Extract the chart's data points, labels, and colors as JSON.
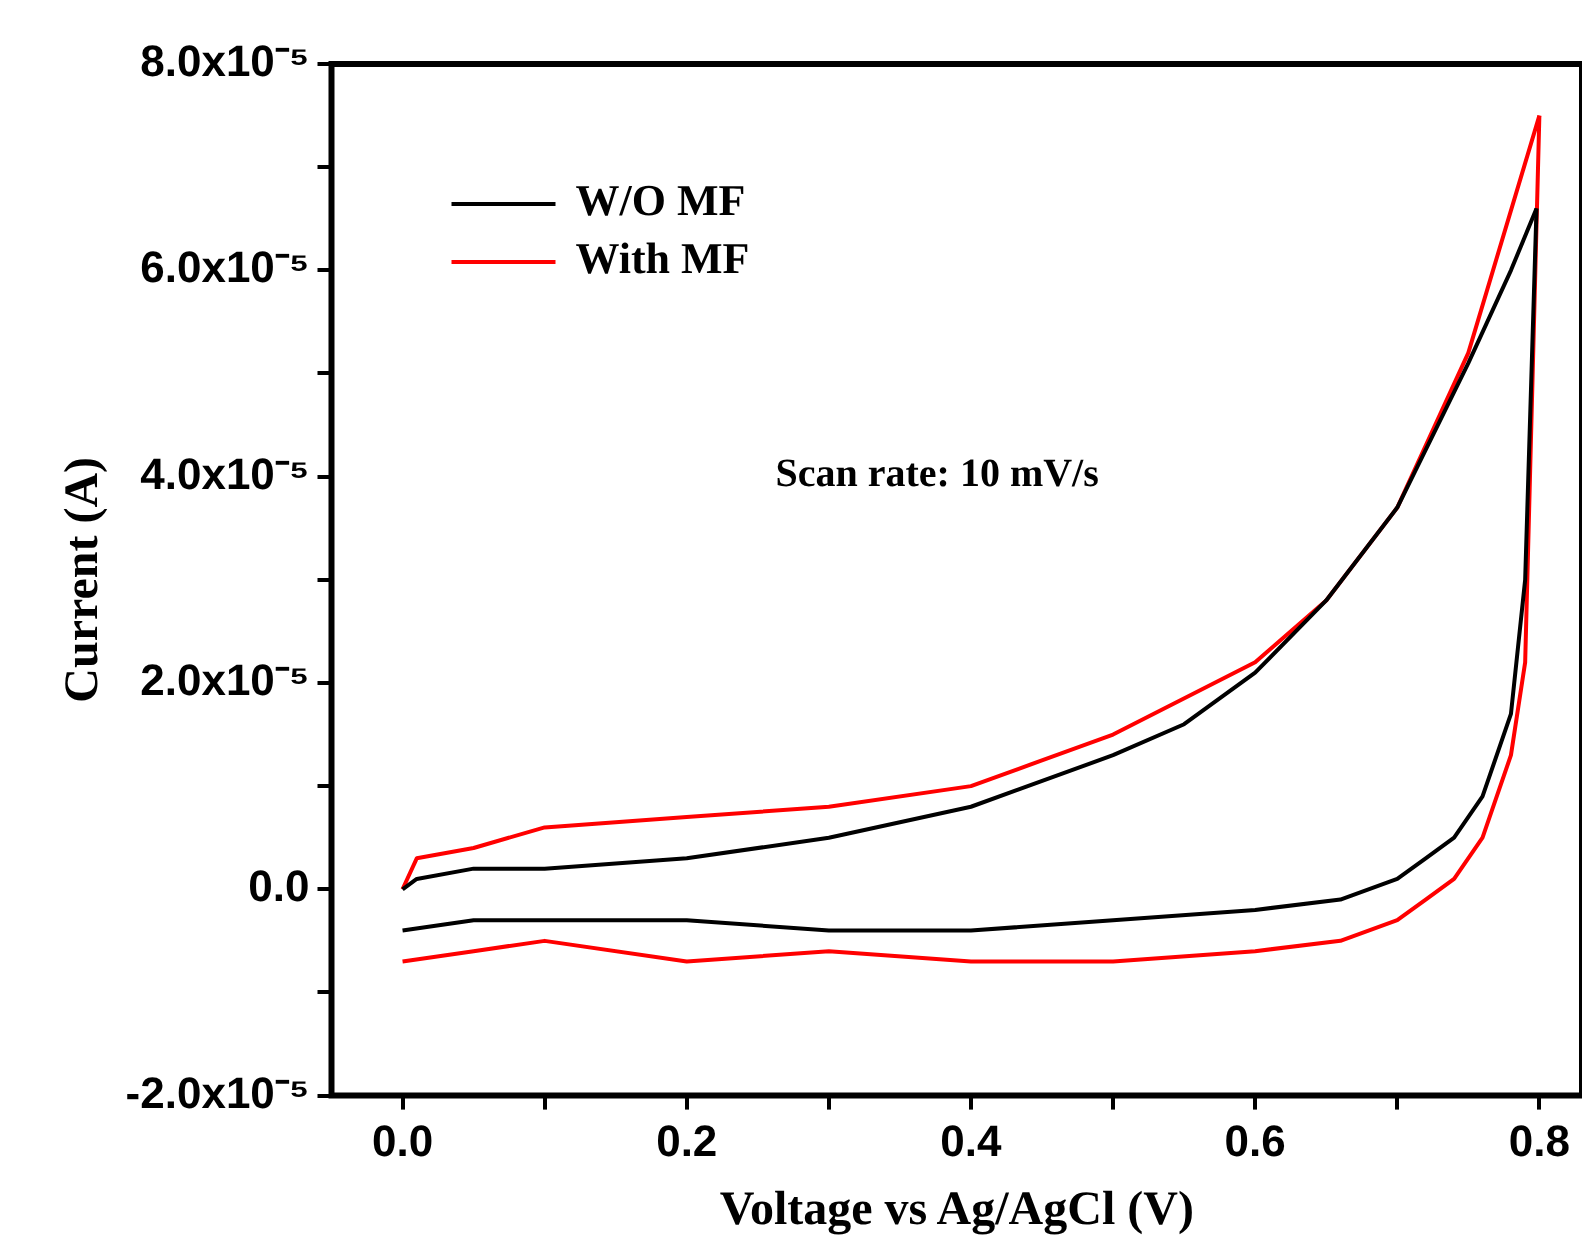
{
  "chart_data": {
    "type": "line",
    "xlabel": "Voltage vs Ag/AgCl (V)",
    "ylabel": "Current (A)",
    "annotations": [
      "Scan rate: 10 mV/s"
    ],
    "xlim": [
      -0.05,
      0.83
    ],
    "xticks": [
      {
        "value": 0,
        "label": "0.0"
      },
      {
        "value": 0.1,
        "label": null
      },
      {
        "value": 0.2,
        "label": "0.2"
      },
      {
        "value": 0.3,
        "label": null
      },
      {
        "value": 0.4,
        "label": "0.4"
      },
      {
        "value": 0.5,
        "label": null
      },
      {
        "value": 0.6,
        "label": "0.6"
      },
      {
        "value": 0.7,
        "label": null
      },
      {
        "value": 0.8,
        "label": "0.8"
      }
    ],
    "ylim": [
      -2e-05,
      8e-05
    ],
    "yticks": [
      {
        "value": -2e-05,
        "label": "-2.0x10⁻⁵"
      },
      {
        "value": -1e-05,
        "label": null
      },
      {
        "value": 0,
        "label": "0.0"
      },
      {
        "value": 1e-05,
        "label": null
      },
      {
        "value": 2e-05,
        "label": "2.0x10⁻⁵"
      },
      {
        "value": 3e-05,
        "label": null
      },
      {
        "value": 4e-05,
        "label": "4.0x10⁻⁵"
      },
      {
        "value": 5e-05,
        "label": null
      },
      {
        "value": 6e-05,
        "label": "6.0x10⁻⁵"
      },
      {
        "value": 7e-05,
        "label": null
      },
      {
        "value": 8e-05,
        "label": "8.0x10⁻⁵"
      }
    ],
    "grid": false,
    "legend": "top left",
    "marker": "none",
    "line_style": "solid",
    "series": [
      {
        "name": "W/O MF",
        "color": "#000000",
        "x": [
          0,
          0.01,
          0.05,
          0.1,
          0.2,
          0.3,
          0.4,
          0.5,
          0.55,
          0.6,
          0.65,
          0.7,
          0.75,
          0.78,
          0.798
        ],
        "values": [
          0,
          1e-06,
          2e-06,
          2e-06,
          3e-06,
          5e-06,
          8e-06,
          1.3e-05,
          1.6e-05,
          2.1e-05,
          2.8e-05,
          3.7e-05,
          5.1e-05,
          6e-05,
          6.6e-05
        ]
      },
      {
        "color": "#000000",
        "x": [
          0.798,
          0.79,
          0.78,
          0.76,
          0.74,
          0.72,
          0.7,
          0.66,
          0.6,
          0.5,
          0.4,
          0.3,
          0.2,
          0.1,
          0.05,
          0
        ],
        "values": [
          6.6e-05,
          3e-05,
          1.7e-05,
          9e-06,
          5e-06,
          3e-06,
          1e-06,
          -1e-06,
          -2e-06,
          -3e-06,
          -4e-06,
          -4e-06,
          -3e-06,
          -3e-06,
          -3e-06,
          -4e-06
        ]
      },
      {
        "name": "With MF",
        "color": "#ff0000",
        "x": [
          0,
          0.01,
          0.05,
          0.1,
          0.2,
          0.3,
          0.4,
          0.5,
          0.6,
          0.65,
          0.7,
          0.75,
          0.8
        ],
        "values": [
          0,
          3e-06,
          4e-06,
          6e-06,
          7e-06,
          8e-06,
          1e-05,
          1.5e-05,
          2.2e-05,
          2.8e-05,
          3.7e-05,
          5.2e-05,
          7.5e-05
        ]
      },
      {
        "color": "#ff0000",
        "x": [
          0.8,
          0.79,
          0.78,
          0.76,
          0.74,
          0.72,
          0.7,
          0.66,
          0.6,
          0.5,
          0.4,
          0.3,
          0.2,
          0.1,
          0.05,
          0
        ],
        "values": [
          7.5e-05,
          2.2e-05,
          1.3e-05,
          5e-06,
          1e-06,
          -1e-06,
          -3e-06,
          -5e-06,
          -6e-06,
          -7e-06,
          -7e-06,
          -6e-06,
          -7e-06,
          -5e-06,
          -6e-06,
          -7e-06
        ]
      }
    ]
  }
}
